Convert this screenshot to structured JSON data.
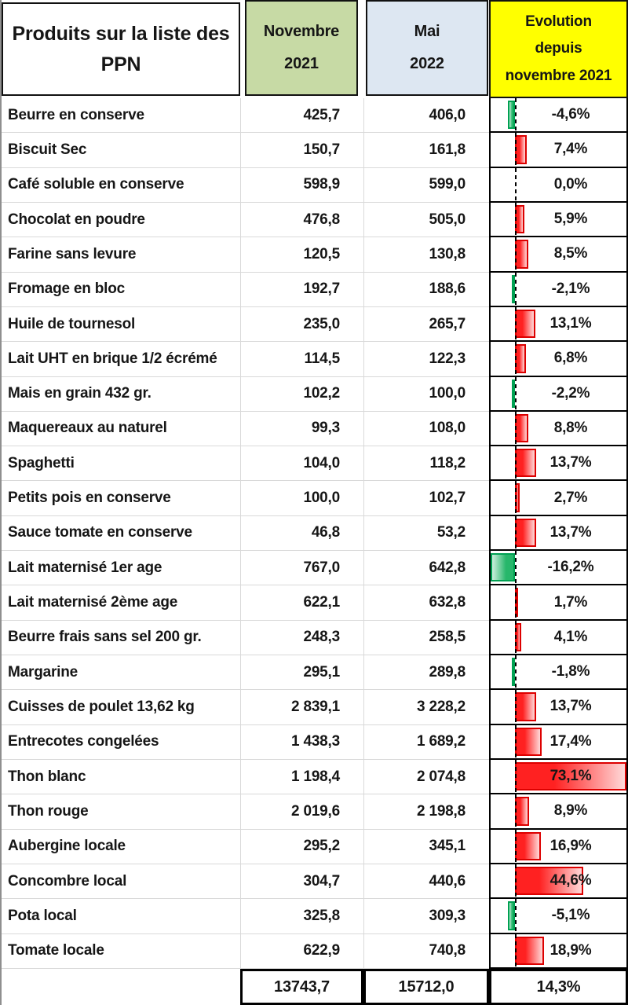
{
  "table": {
    "title": "Produits sur la liste des PPN",
    "headers": {
      "nov_line1": "Novembre",
      "nov_line2": "2021",
      "mai_line1": "Mai",
      "mai_line2": "2022",
      "evo_line1": "Evolution",
      "evo_line2": "depuis",
      "evo_line3": "novembre 2021"
    },
    "rows": [
      {
        "product": "Beurre en conserve",
        "nov": "425,7",
        "mai": "406,0",
        "evo_label": "-4,6%",
        "evo_pct": -4.6
      },
      {
        "product": "Biscuit Sec",
        "nov": "150,7",
        "mai": "161,8",
        "evo_label": "7,4%",
        "evo_pct": 7.4
      },
      {
        "product": "Café soluble en conserve",
        "nov": "598,9",
        "mai": "599,0",
        "evo_label": "0,0%",
        "evo_pct": 0.0
      },
      {
        "product": "Chocolat en poudre",
        "nov": "476,8",
        "mai": "505,0",
        "evo_label": "5,9%",
        "evo_pct": 5.9
      },
      {
        "product": "Farine sans levure",
        "nov": "120,5",
        "mai": "130,8",
        "evo_label": "8,5%",
        "evo_pct": 8.5
      },
      {
        "product": "Fromage en bloc",
        "nov": "192,7",
        "mai": "188,6",
        "evo_label": "-2,1%",
        "evo_pct": -2.1
      },
      {
        "product": "Huile de tournesol",
        "nov": "235,0",
        "mai": "265,7",
        "evo_label": "13,1%",
        "evo_pct": 13.1
      },
      {
        "product": "Lait UHT en brique 1/2 écrémé",
        "nov": "114,5",
        "mai": "122,3",
        "evo_label": "6,8%",
        "evo_pct": 6.8
      },
      {
        "product": "Mais en grain 432 gr.",
        "nov": "102,2",
        "mai": "100,0",
        "evo_label": "-2,2%",
        "evo_pct": -2.2
      },
      {
        "product": "Maquereaux au naturel",
        "nov": "99,3",
        "mai": "108,0",
        "evo_label": "8,8%",
        "evo_pct": 8.8
      },
      {
        "product": "Spaghetti",
        "nov": "104,0",
        "mai": "118,2",
        "evo_label": "13,7%",
        "evo_pct": 13.7
      },
      {
        "product": "Petits pois en conserve",
        "nov": "100,0",
        "mai": "102,7",
        "evo_label": "2,7%",
        "evo_pct": 2.7
      },
      {
        "product": "Sauce tomate en conserve",
        "nov": "46,8",
        "mai": "53,2",
        "evo_label": "13,7%",
        "evo_pct": 13.7
      },
      {
        "product": "Lait maternisé 1er age",
        "nov": "767,0",
        "mai": "642,8",
        "evo_label": "-16,2%",
        "evo_pct": -16.2
      },
      {
        "product": "Lait maternisé 2ème age",
        "nov": "622,1",
        "mai": "632,8",
        "evo_label": "1,7%",
        "evo_pct": 1.7
      },
      {
        "product": "Beurre frais sans sel 200 gr.",
        "nov": "248,3",
        "mai": "258,5",
        "evo_label": "4,1%",
        "evo_pct": 4.1
      },
      {
        "product": "Margarine",
        "nov": "295,1",
        "mai": "289,8",
        "evo_label": "-1,8%",
        "evo_pct": -1.8
      },
      {
        "product": "Cuisses de poulet 13,62 kg",
        "nov": "2 839,1",
        "mai": "3 228,2",
        "evo_label": "13,7%",
        "evo_pct": 13.7
      },
      {
        "product": "Entrecotes congelées",
        "nov": "1 438,3",
        "mai": "1 689,2",
        "evo_label": "17,4%",
        "evo_pct": 17.4
      },
      {
        "product": "Thon blanc",
        "nov": "1 198,4",
        "mai": "2 074,8",
        "evo_label": "73,1%",
        "evo_pct": 73.1
      },
      {
        "product": "Thon rouge",
        "nov": "2 019,6",
        "mai": "2 198,8",
        "evo_label": "8,9%",
        "evo_pct": 8.9
      },
      {
        "product": "Aubergine locale",
        "nov": "295,2",
        "mai": "345,1",
        "evo_label": "16,9%",
        "evo_pct": 16.9
      },
      {
        "product": "Concombre local",
        "nov": "304,7",
        "mai": "440,6",
        "evo_label": "44,6%",
        "evo_pct": 44.6
      },
      {
        "product": "Pota local",
        "nov": "325,8",
        "mai": "309,3",
        "evo_label": "-5,1%",
        "evo_pct": -5.1
      },
      {
        "product": "Tomate locale",
        "nov": "622,9",
        "mai": "740,8",
        "evo_label": "18,9%",
        "evo_pct": 18.9
      }
    ],
    "totals": {
      "nov": "13743,7",
      "mai": "15712,0",
      "evo": "14,3%"
    },
    "colors": {
      "header_nov_bg": "#c7daa5",
      "header_mai_bg": "#dde7f2",
      "header_evo_bg": "#ffff00",
      "bar_positive_fill_start": "#ff2121",
      "bar_positive_fill_end": "#ffd9d9",
      "bar_positive_border": "#dd0000",
      "bar_negative_fill_start": "#27b76b",
      "bar_negative_fill_end": "#cdeedd",
      "bar_negative_border": "#00a152",
      "gridline": "#d9d9d9",
      "axis": "#000000"
    }
  },
  "chart_data": {
    "type": "table",
    "title": "Produits sur la liste des PPN",
    "columns": [
      "Produits sur la liste des PPN",
      "Novembre 2021",
      "Mai 2022",
      "Evolution depuis novembre 2021"
    ],
    "rows": [
      [
        "Beurre en conserve",
        425.7,
        406.0,
        -4.6
      ],
      [
        "Biscuit Sec",
        150.7,
        161.8,
        7.4
      ],
      [
        "Café soluble en conserve",
        598.9,
        599.0,
        0.0
      ],
      [
        "Chocolat en poudre",
        476.8,
        505.0,
        5.9
      ],
      [
        "Farine sans levure",
        120.5,
        130.8,
        8.5
      ],
      [
        "Fromage en bloc",
        192.7,
        188.6,
        -2.1
      ],
      [
        "Huile de tournesol",
        235.0,
        265.7,
        13.1
      ],
      [
        "Lait UHT en brique 1/2 écrémé",
        114.5,
        122.3,
        6.8
      ],
      [
        "Mais en grain 432 gr.",
        102.2,
        100.0,
        -2.2
      ],
      [
        "Maquereaux au naturel",
        99.3,
        108.0,
        8.8
      ],
      [
        "Spaghetti",
        104.0,
        118.2,
        13.7
      ],
      [
        "Petits pois en conserve",
        100.0,
        102.7,
        2.7
      ],
      [
        "Sauce tomate en conserve",
        46.8,
        53.2,
        13.7
      ],
      [
        "Lait maternisé 1er age",
        767.0,
        642.8,
        -16.2
      ],
      [
        "Lait maternisé 2ème age",
        622.1,
        632.8,
        1.7
      ],
      [
        "Beurre frais sans sel 200 gr.",
        248.3,
        258.5,
        4.1
      ],
      [
        "Margarine",
        295.1,
        289.8,
        -1.8
      ],
      [
        "Cuisses de poulet 13,62 kg",
        2839.1,
        3228.2,
        13.7
      ],
      [
        "Entrecotes congelées",
        1438.3,
        1689.2,
        17.4
      ],
      [
        "Thon blanc",
        1198.4,
        2074.8,
        73.1
      ],
      [
        "Thon rouge",
        2019.6,
        2198.8,
        8.9
      ],
      [
        "Aubergine locale",
        295.2,
        345.1,
        16.9
      ],
      [
        "Concombre local",
        304.7,
        440.6,
        44.6
      ],
      [
        "Pota local",
        325.8,
        309.3,
        -5.1
      ],
      [
        "Tomate locale",
        622.9,
        740.8,
        18.9
      ]
    ],
    "totals": [
      13743.7,
      15712.0,
      14.3
    ],
    "databar": {
      "column": "Evolution depuis novembre 2021",
      "axis_min": -16.2,
      "axis_max": 73.1,
      "positive_color": "red",
      "negative_color": "green",
      "axis_style": "dashed-black-vertical"
    }
  }
}
